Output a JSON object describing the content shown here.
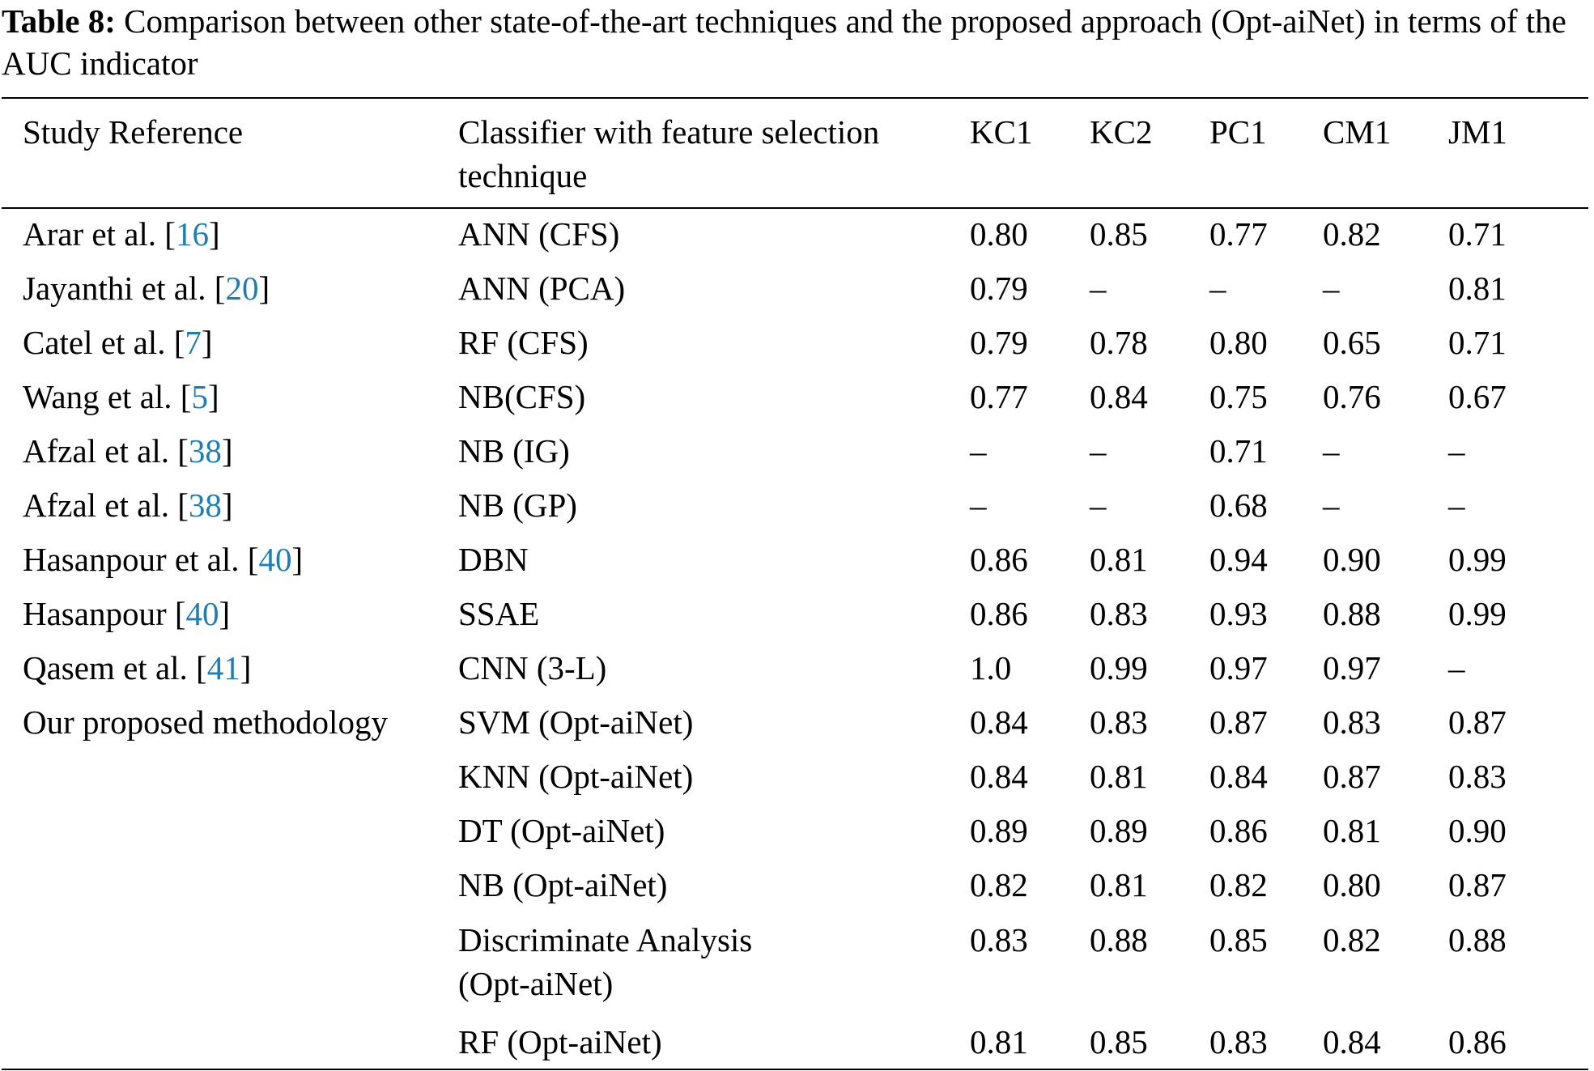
{
  "caption": {
    "label": "Table 8:",
    "text": "Comparison between other state-of-the-art techniques and the proposed approach (Opt-aiNet) in terms of the AUC indicator"
  },
  "table": {
    "headers": {
      "study_reference": "Study Reference",
      "classifier": "Classifier with feature selection technique",
      "kc1": "KC1",
      "kc2": "KC2",
      "pc1": "PC1",
      "cm1": "CM1",
      "jm1": "JM1"
    },
    "rows": [
      {
        "ref_name": "Arar et al. [",
        "ref_cite": "16",
        "ref_close": "]",
        "classifier": "ANN (CFS)",
        "kc1": "0.80",
        "kc2": "0.85",
        "pc1": "0.77",
        "cm1": "0.82",
        "jm1": "0.71"
      },
      {
        "ref_name": "Jayanthi et al. [",
        "ref_cite": "20",
        "ref_close": "]",
        "classifier": "ANN (PCA)",
        "kc1": "0.79",
        "kc2": "–",
        "pc1": "–",
        "cm1": "–",
        "jm1": "0.81"
      },
      {
        "ref_name": "Catel et al. [",
        "ref_cite": "7",
        "ref_close": "]",
        "classifier": "RF (CFS)",
        "kc1": "0.79",
        "kc2": "0.78",
        "pc1": "0.80",
        "cm1": "0.65",
        "jm1": "0.71"
      },
      {
        "ref_name": "Wang et al. [",
        "ref_cite": "5",
        "ref_close": "]",
        "classifier": "NB(CFS)",
        "kc1": "0.77",
        "kc2": "0.84",
        "pc1": "0.75",
        "cm1": "0.76",
        "jm1": "0.67"
      },
      {
        "ref_name": "Afzal et al. [",
        "ref_cite": "38",
        "ref_close": "]",
        "classifier": "NB (IG)",
        "kc1": "–",
        "kc2": "–",
        "pc1": "0.71",
        "cm1": "–",
        "jm1": "–"
      },
      {
        "ref_name": "Afzal et al. [",
        "ref_cite": "38",
        "ref_close": "]",
        "classifier": "NB (GP)",
        "kc1": "–",
        "kc2": "–",
        "pc1": "0.68",
        "cm1": "–",
        "jm1": "–"
      },
      {
        "ref_name": "Hasanpour et al. [",
        "ref_cite": "40",
        "ref_close": "]",
        "classifier": "DBN",
        "kc1": "0.86",
        "kc2": "0.81",
        "pc1": "0.94",
        "cm1": "0.90",
        "jm1": "0.99"
      },
      {
        "ref_name": "Hasanpour [",
        "ref_cite": "40",
        "ref_close": "]",
        "classifier": "SSAE",
        "kc1": "0.86",
        "kc2": "0.83",
        "pc1": "0.93",
        "cm1": "0.88",
        "jm1": "0.99"
      },
      {
        "ref_name": "Qasem et al. [",
        "ref_cite": "41",
        "ref_close": "]",
        "classifier": "CNN (3-L)",
        "kc1": "1.0",
        "kc2": "0.99",
        "pc1": "0.97",
        "cm1": "0.97",
        "jm1": "–"
      }
    ],
    "proposed": {
      "ref": "Our proposed methodology",
      "rows": [
        {
          "classifier": "SVM (Opt-aiNet)",
          "kc1": "0.84",
          "kc2": "0.83",
          "pc1": "0.87",
          "cm1": "0.83",
          "jm1": "0.87"
        },
        {
          "classifier": "KNN (Opt-aiNet)",
          "kc1": "0.84",
          "kc2": "0.81",
          "pc1": "0.84",
          "cm1": "0.87",
          "jm1": "0.83"
        },
        {
          "classifier": "DT (Opt-aiNet)",
          "kc1": "0.89",
          "kc2": "0.89",
          "pc1": "0.86",
          "cm1": "0.81",
          "jm1": "0.90"
        },
        {
          "classifier": "NB (Opt-aiNet)",
          "kc1": "0.82",
          "kc2": "0.81",
          "pc1": "0.82",
          "cm1": "0.80",
          "jm1": "0.87"
        },
        {
          "classifier": "Discriminate Analysis (Opt-aiNet)",
          "kc1": "0.83",
          "kc2": "0.88",
          "pc1": "0.85",
          "cm1": "0.82",
          "jm1": "0.88"
        },
        {
          "classifier": "RF (Opt-aiNet)",
          "kc1": "0.81",
          "kc2": "0.85",
          "pc1": "0.83",
          "cm1": "0.84",
          "jm1": "0.86"
        }
      ]
    }
  }
}
